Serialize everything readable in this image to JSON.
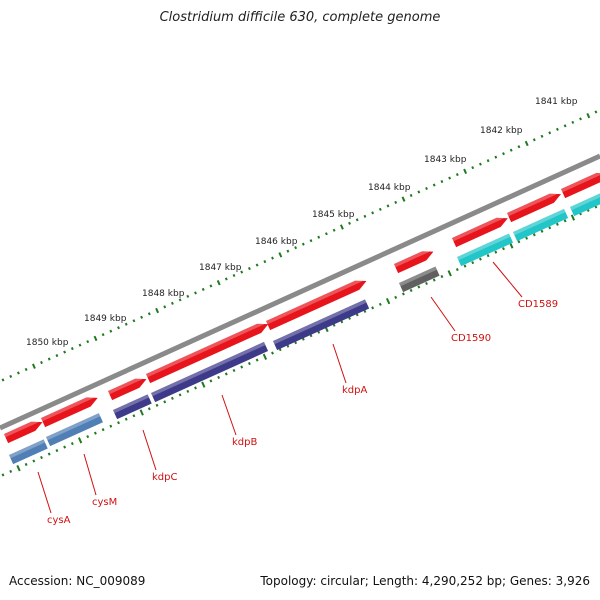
{
  "title": "Clostridium difficile 630, complete genome",
  "accession": "Accession: NC_009089",
  "summary": "Topology: circular; Length: 4,290,252 bp; Genes: 3,926",
  "scale": {
    "ticks": [
      {
        "label": "1841 kbp",
        "kbp": 1841
      },
      {
        "label": "1842 kbp",
        "kbp": 1842
      },
      {
        "label": "1843 kbp",
        "kbp": 1843
      },
      {
        "label": "1844 kbp",
        "kbp": 1844
      },
      {
        "label": "1845 kbp",
        "kbp": 1845
      },
      {
        "label": "1846 kbp",
        "kbp": 1846
      },
      {
        "label": "1847 kbp",
        "kbp": 1847
      },
      {
        "label": "1848 kbp",
        "kbp": 1848
      },
      {
        "label": "1849 kbp",
        "kbp": 1849
      },
      {
        "label": "1850 kbp",
        "kbp": 1850
      }
    ]
  },
  "genes": [
    {
      "name": "cysA",
      "color": "#4f7fb5"
    },
    {
      "name": "cysM",
      "color": "#4f7fb5"
    },
    {
      "name": "kdpC",
      "color": "#3e3a8a"
    },
    {
      "name": "kdpB",
      "color": "#3e3a8a"
    },
    {
      "name": "kdpA",
      "color": "#3e3a8a"
    },
    {
      "name": "CD1590",
      "color": "#606060"
    },
    {
      "name": "CD1589",
      "color": "#22c5c8"
    }
  ],
  "colors": {
    "cds": "#e8141c",
    "backbone": "#8a8a8a",
    "tick": "#1f7a1f",
    "label": "#d01010"
  }
}
